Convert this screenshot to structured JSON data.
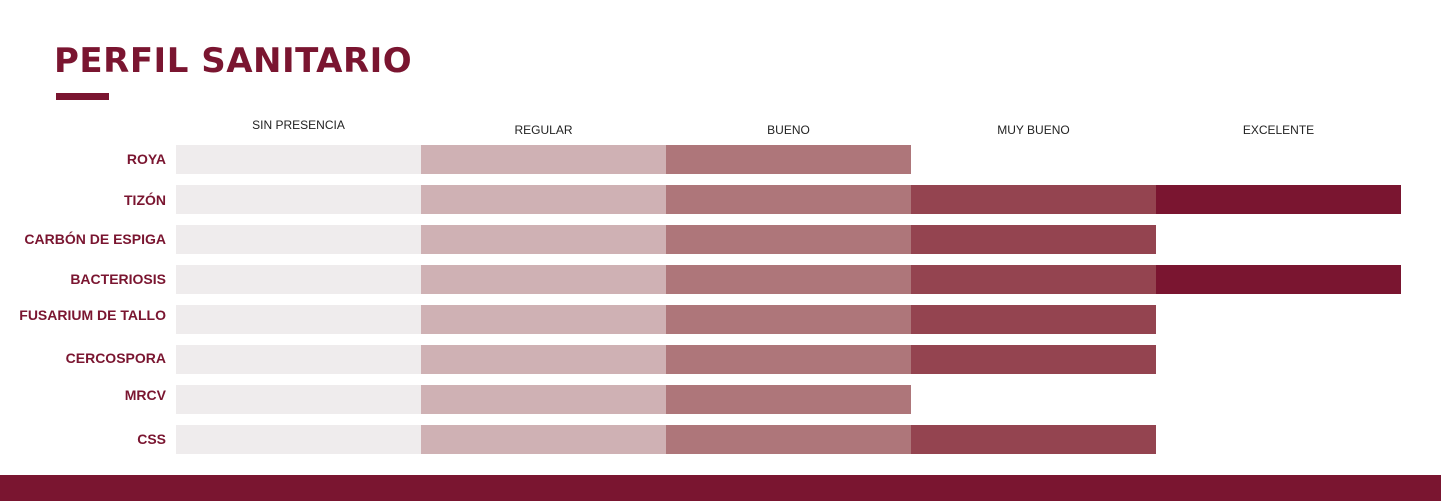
{
  "chart_data": {
    "type": "bar",
    "title": "PERFIL SANITARIO",
    "levels": [
      "SIN PRESENCIA",
      "REGULAR",
      "BUENO",
      "MUY BUENO",
      "EXCELENTE"
    ],
    "level_colors": [
      "#efeced",
      "#cfb1b4",
      "#ae767a",
      "#944450",
      "#7a1530"
    ],
    "categories": [
      "ROYA",
      "TIZÓN",
      "CARBÓN DE ESPIGA",
      "BACTERIOSIS",
      "FUSARIUM DE TALLO",
      "CERCOSPORA",
      "MRCV",
      "CSS"
    ],
    "values": [
      3,
      5,
      4,
      5,
      4,
      4,
      3,
      4
    ],
    "xlim": [
      0,
      5
    ]
  },
  "footer": {
    "color": "#7a1530"
  }
}
